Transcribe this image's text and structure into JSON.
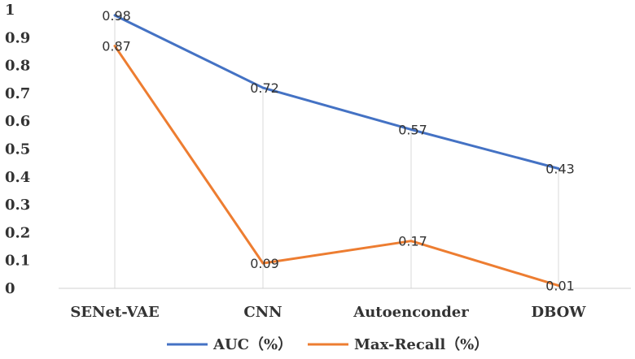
{
  "chart_data": {
    "type": "line",
    "title": "",
    "xlabel": "",
    "ylabel": "",
    "categories": [
      "SENet-VAE",
      "CNN",
      "Autoenconder",
      "DBOW"
    ],
    "ylim": [
      0,
      1
    ],
    "yticks": [
      "0",
      "0.1",
      "0.2",
      "0.3",
      "0.4",
      "0.5",
      "0.6",
      "0.7",
      "0.8",
      "0.9",
      "1"
    ],
    "grid": "vertical drop lines at categories",
    "legend_position": "bottom-center",
    "series": [
      {
        "name": "AUC（%）",
        "color": "#4472C4",
        "values": [
          0.98,
          0.72,
          0.57,
          0.43
        ],
        "labels": [
          "0.98",
          "0.72",
          "0.57",
          "0.43"
        ]
      },
      {
        "name": "Max-Recall（%）",
        "color": "#ED7D31",
        "values": [
          0.87,
          0.09,
          0.17,
          0.01
        ],
        "labels": [
          "0.87",
          "0.09",
          "0.17",
          "0.01"
        ]
      }
    ]
  }
}
